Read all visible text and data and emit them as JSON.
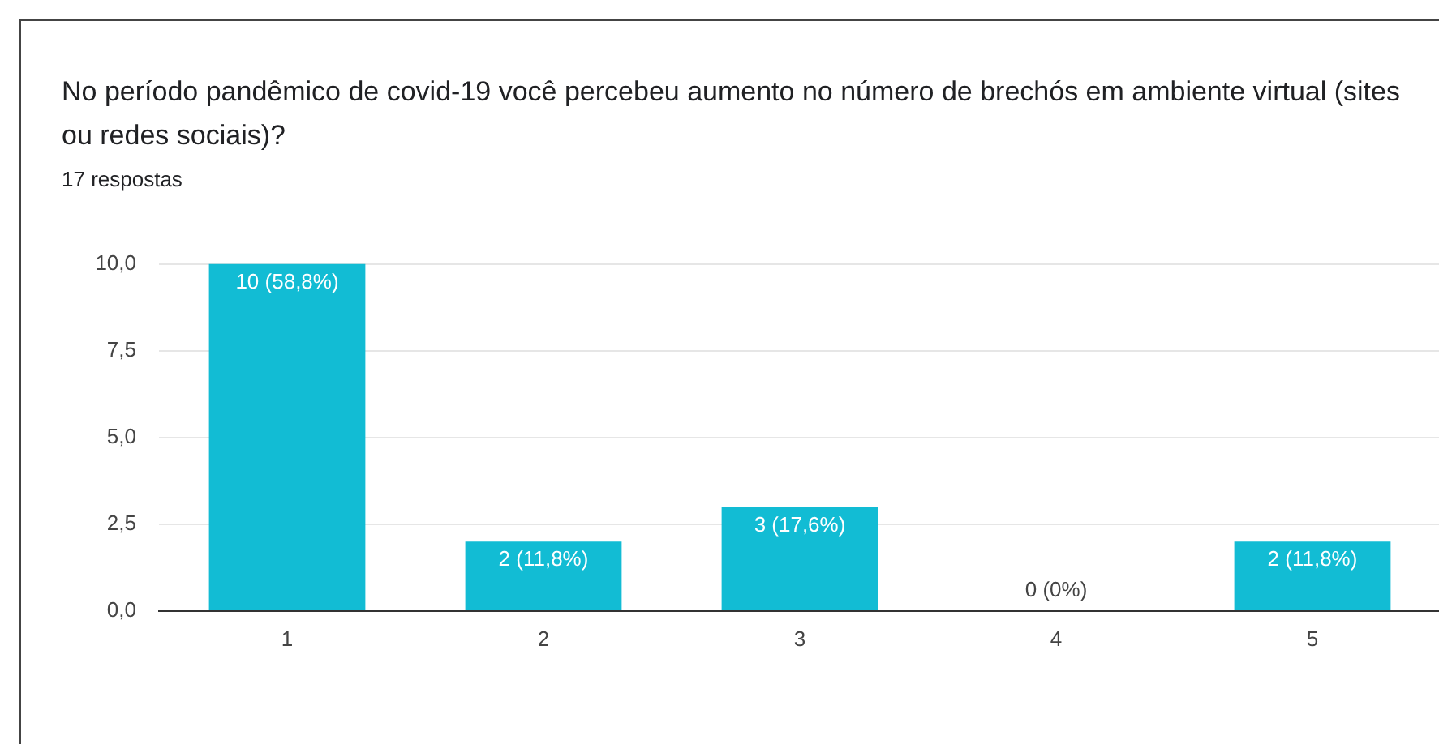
{
  "chart_data": {
    "type": "bar",
    "title": "No período pandêmico de covid-19 você percebeu aumento no número de brechós em ambiente virtual (sites ou redes sociais)?",
    "subtitle": "17 respostas",
    "categories": [
      "1",
      "2",
      "3",
      "4",
      "5"
    ],
    "values": [
      10,
      2,
      3,
      0,
      2
    ],
    "value_labels": [
      "10 (58,8%)",
      "2 (11,8%)",
      "3 (17,6%)",
      "0 (0%)",
      "2 (11,8%)"
    ],
    "color": "#12bcd4",
    "ylim": [
      0,
      10
    ],
    "yticks": [
      {
        "value": 0,
        "label": "0,0"
      },
      {
        "value": 2.5,
        "label": "2,5"
      },
      {
        "value": 5,
        "label": "5,0"
      },
      {
        "value": 7.5,
        "label": "7,5"
      },
      {
        "value": 10,
        "label": "10,0"
      }
    ],
    "grid": "y",
    "legend": false
  }
}
